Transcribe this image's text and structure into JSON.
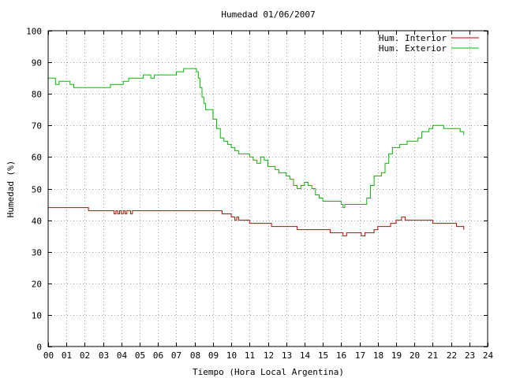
{
  "chart_data": {
    "type": "line",
    "title": "Humedad 01/06/2007",
    "xlabel": "Tiempo (Hora Local Argentina)",
    "ylabel": "Humedad (%)",
    "xlim": [
      0,
      24
    ],
    "ylim": [
      0,
      100
    ],
    "x_ticks": [
      "00",
      "01",
      "02",
      "03",
      "04",
      "05",
      "06",
      "07",
      "08",
      "09",
      "10",
      "11",
      "12",
      "13",
      "14",
      "15",
      "16",
      "17",
      "18",
      "19",
      "20",
      "21",
      "22",
      "23",
      "24"
    ],
    "y_ticks": [
      "0",
      "10",
      "20",
      "30",
      "40",
      "50",
      "60",
      "70",
      "80",
      "90",
      "100"
    ],
    "grid": true,
    "legend_position": "top-right",
    "series": [
      {
        "name": "Hum. Interior",
        "color": "#cc0000",
        "x": [
          0,
          2.2,
          2.2,
          3.6,
          3.6,
          3.7,
          3.8,
          3.9,
          4.0,
          4.1,
          4.2,
          4.3,
          4.5,
          4.6,
          5.0,
          9.3,
          9.5,
          9.8,
          10.0,
          10.2,
          10.2,
          10.3,
          10.4,
          10.6,
          11.0,
          11.2,
          11.8,
          12.2,
          12.5,
          12.8,
          13.2,
          13.6,
          14.0,
          14.5,
          15.0,
          15.3,
          15.4,
          15.8,
          16.0,
          16.1,
          16.3,
          16.5,
          16.8,
          17.0,
          17.1,
          17.3,
          17.5,
          17.8,
          18.0,
          18.3,
          18.7,
          19.0,
          19.1,
          19.3,
          19.5,
          19.6,
          20.0,
          20.5,
          21.0,
          21.5,
          22.0,
          22.3,
          22.5,
          22.7
        ],
        "values": [
          44,
          44,
          43,
          43,
          42,
          43,
          42,
          43,
          42,
          43,
          42,
          43,
          42,
          43,
          43,
          43,
          42,
          42,
          41,
          41,
          40,
          41,
          40,
          40,
          39,
          39,
          39,
          38,
          38,
          38,
          38,
          37,
          37,
          37,
          37,
          37,
          36,
          36,
          36,
          35,
          36,
          36,
          36,
          36,
          35,
          36,
          36,
          37,
          38,
          38,
          39,
          40,
          40,
          41,
          40,
          40,
          40,
          40,
          39,
          39,
          39,
          38,
          38,
          37
        ]
      },
      {
        "name": "Hum. Exterior",
        "color": "#00bb00",
        "x": [
          0,
          0.2,
          0.4,
          0.6,
          1.0,
          1.2,
          1.4,
          2.0,
          2.4,
          2.8,
          3.2,
          3.4,
          3.6,
          3.8,
          4.0,
          4.1,
          4.2,
          4.4,
          4.6,
          4.8,
          5.0,
          5.2,
          5.4,
          5.6,
          5.8,
          6.0,
          6.2,
          6.4,
          6.6,
          6.8,
          7.0,
          7.2,
          7.4,
          7.6,
          7.8,
          8.0,
          8.1,
          8.2,
          8.3,
          8.4,
          8.5,
          8.6,
          8.8,
          9.0,
          9.2,
          9.4,
          9.6,
          9.8,
          10.0,
          10.2,
          10.4,
          10.6,
          10.8,
          11.0,
          11.2,
          11.4,
          11.6,
          11.8,
          12.0,
          12.2,
          12.4,
          12.6,
          12.8,
          13.0,
          13.2,
          13.4,
          13.6,
          13.8,
          14.0,
          14.2,
          14.4,
          14.6,
          14.8,
          15.0,
          15.2,
          15.4,
          15.6,
          15.8,
          16.0,
          16.1,
          16.2,
          16.4,
          16.6,
          16.8,
          17.0,
          17.2,
          17.4,
          17.6,
          17.8,
          18.0,
          18.2,
          18.4,
          18.6,
          18.8,
          19.0,
          19.2,
          19.4,
          19.6,
          19.8,
          20.0,
          20.2,
          20.4,
          20.6,
          20.8,
          21.0,
          21.2,
          21.4,
          21.6,
          21.8,
          22.0,
          22.2,
          22.4,
          22.5,
          22.6,
          22.7
        ],
        "values": [
          85,
          85,
          83,
          84,
          84,
          83,
          82,
          82,
          82,
          82,
          82,
          83,
          83,
          83,
          83,
          84,
          84,
          85,
          85,
          85,
          85,
          86,
          86,
          85,
          86,
          86,
          86,
          86,
          86,
          86,
          87,
          87,
          88,
          88,
          88,
          88,
          87,
          85,
          82,
          79,
          77,
          75,
          75,
          72,
          69,
          66,
          65,
          64,
          63,
          62,
          61,
          61,
          61,
          60,
          59,
          58,
          60,
          59,
          57,
          57,
          56,
          55,
          55,
          54,
          53,
          51,
          50,
          51,
          52,
          51,
          50,
          48,
          47,
          46,
          46,
          46,
          46,
          46,
          45,
          44,
          45,
          45,
          45,
          45,
          45,
          45,
          47,
          51,
          54,
          54,
          55,
          58,
          61,
          63,
          63,
          64,
          64,
          65,
          65,
          65,
          66,
          68,
          68,
          69,
          70,
          70,
          70,
          69,
          69,
          69,
          69,
          69,
          68,
          68,
          67
        ]
      }
    ]
  }
}
